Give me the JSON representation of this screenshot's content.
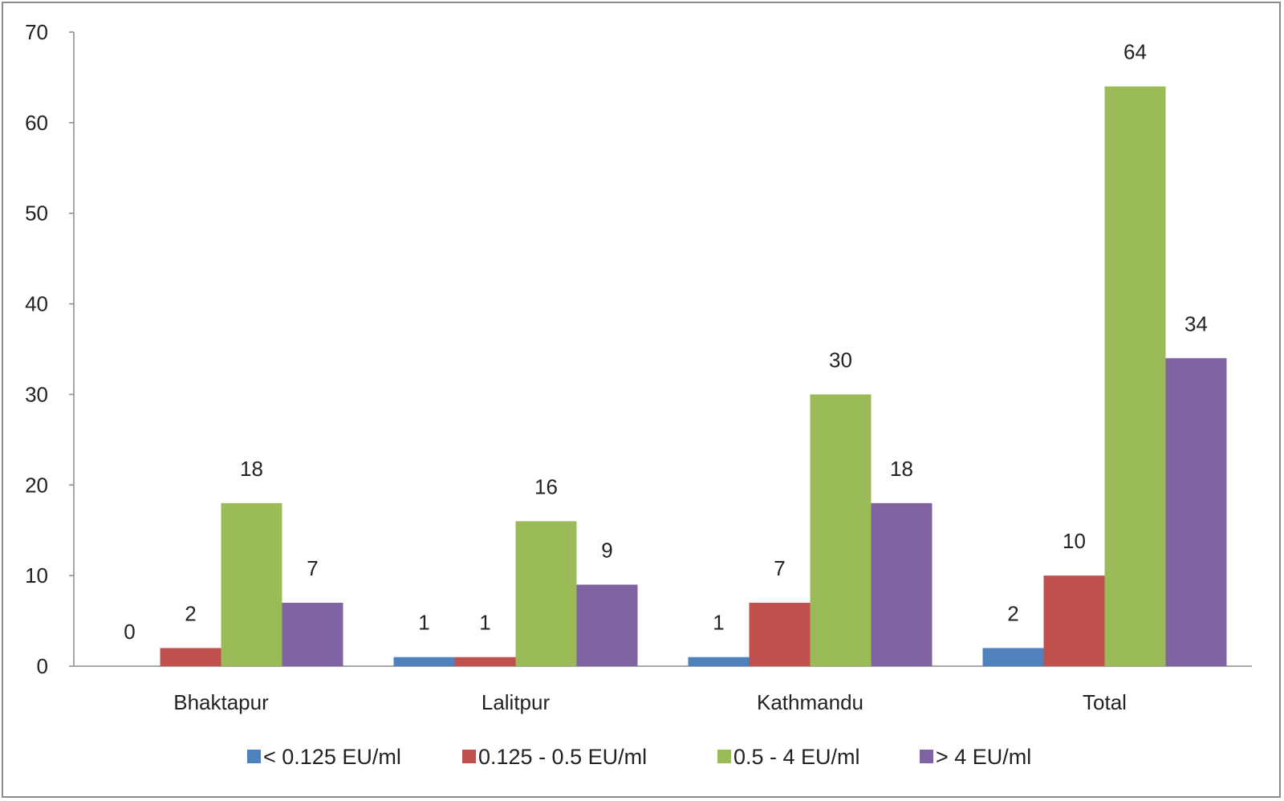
{
  "chart_data": {
    "type": "bar",
    "categories": [
      "Bhaktapur",
      "Lalitpur",
      "Kathmandu",
      "Total"
    ],
    "series": [
      {
        "name": "< 0.125 EU/ml",
        "values": [
          0,
          1,
          1,
          2
        ],
        "color": "#4f81bd"
      },
      {
        "name": "0.125 - 0.5 EU/ml",
        "values": [
          2,
          1,
          7,
          10
        ],
        "color": "#c0504d"
      },
      {
        "name": "0.5 - 4 EU/ml",
        "values": [
          18,
          16,
          30,
          64
        ],
        "color": "#9bbb59"
      },
      {
        "name": "> 4 EU/ml",
        "values": [
          7,
          9,
          18,
          34
        ],
        "color": "#8064a2"
      }
    ],
    "title": "",
    "xlabel": "",
    "ylabel": "",
    "ylim": [
      0,
      70
    ],
    "yticks": [
      "0",
      "10",
      "20",
      "30",
      "40",
      "50",
      "60",
      "70"
    ],
    "grid": false,
    "legend": "bottom",
    "data_labels": true
  }
}
